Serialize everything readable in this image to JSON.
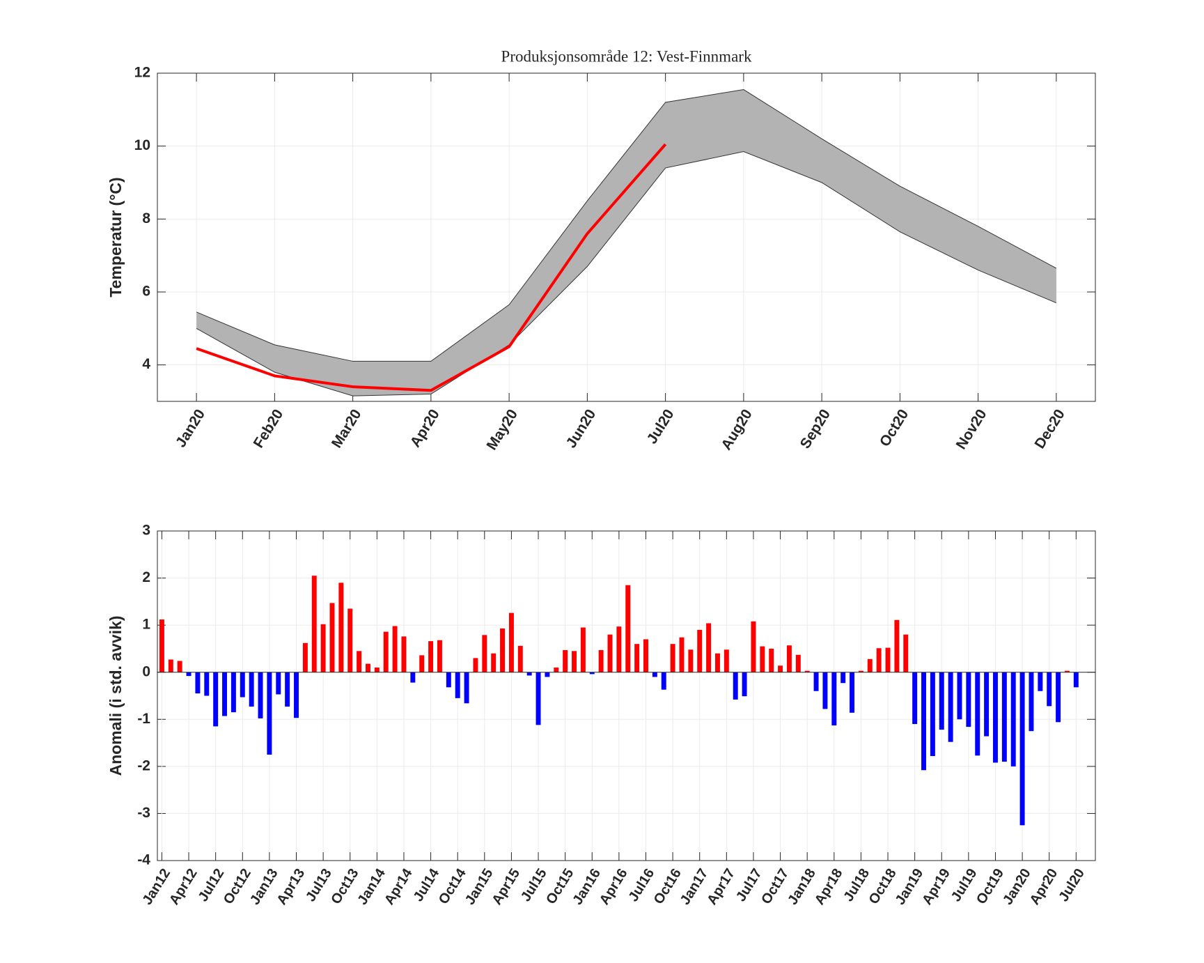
{
  "chart_data": [
    {
      "type": "line",
      "title": "Produksjonsområde 12: Vest-Finnmark",
      "ylabel": "Temperatur (°C)",
      "categories": [
        "Jan20",
        "Feb20",
        "Mar20",
        "Apr20",
        "May20",
        "Jun20",
        "Jul20",
        "Aug20",
        "Sep20",
        "Oct20",
        "Nov20",
        "Dec20"
      ],
      "band": {
        "color": "#b3b3b3",
        "upper": [
          5.45,
          4.55,
          4.1,
          4.1,
          5.65,
          8.5,
          11.2,
          11.55,
          10.2,
          8.9,
          7.8,
          6.65
        ],
        "lower": [
          5.0,
          3.8,
          3.15,
          3.2,
          4.55,
          6.7,
          9.4,
          9.85,
          9.0,
          7.65,
          6.6,
          5.7
        ]
      },
      "series": [
        {
          "color": "#ff0000",
          "values": [
            4.45,
            3.7,
            3.4,
            3.3,
            4.5,
            7.6,
            10.05,
            null,
            null,
            null,
            null,
            null
          ]
        }
      ],
      "ylim": [
        3,
        12
      ],
      "yticks": [
        4,
        6,
        8,
        10,
        12
      ],
      "grid": true
    },
    {
      "type": "bar",
      "ylabel": "Anomali (i std. avvik)",
      "categories": [
        "Jan12",
        null,
        null,
        "Apr12",
        null,
        null,
        "Jul12",
        null,
        null,
        "Oct12",
        null,
        null,
        "Jan13",
        null,
        null,
        "Apr13",
        null,
        null,
        "Jul13",
        null,
        null,
        "Oct13",
        null,
        null,
        "Jan14",
        null,
        null,
        "Apr14",
        null,
        null,
        "Jul14",
        null,
        null,
        "Oct14",
        null,
        null,
        "Jan15",
        null,
        null,
        "Apr15",
        null,
        null,
        "Jul15",
        null,
        null,
        "Oct15",
        null,
        null,
        "Jan16",
        null,
        null,
        "Apr16",
        null,
        null,
        "Jul16",
        null,
        null,
        "Oct16",
        null,
        null,
        "Jan17",
        null,
        null,
        "Apr17",
        null,
        null,
        "Jul17",
        null,
        null,
        "Oct17",
        null,
        null,
        "Jan18",
        null,
        null,
        "Apr18",
        null,
        null,
        "Jul18",
        null,
        null,
        "Oct18",
        null,
        null,
        "Jan19",
        null,
        null,
        "Apr19",
        null,
        null,
        "Jul19",
        null,
        null,
        "Oct19",
        null,
        null,
        "Jan20",
        null,
        null,
        "Apr20",
        null,
        null,
        "Jul20"
      ],
      "values": [
        1.12,
        0.27,
        0.24,
        -0.08,
        -0.45,
        -0.5,
        -1.15,
        -0.93,
        -0.85,
        -0.53,
        -0.73,
        -0.98,
        -1.75,
        -0.47,
        -0.73,
        -0.97,
        0.62,
        2.05,
        1.02,
        1.47,
        1.9,
        1.35,
        0.45,
        0.18,
        0.1,
        0.86,
        0.98,
        0.76,
        -0.22,
        0.36,
        0.66,
        0.68,
        -0.32,
        -0.55,
        -0.66,
        0.3,
        0.79,
        0.4,
        0.93,
        1.26,
        0.56,
        -0.07,
        -1.12,
        -0.1,
        0.1,
        0.47,
        0.45,
        0.95,
        -0.04,
        0.47,
        0.8,
        0.97,
        1.85,
        0.6,
        0.7,
        -0.1,
        -0.37,
        0.6,
        0.74,
        0.48,
        0.9,
        1.04,
        0.4,
        0.48,
        -0.58,
        -0.51,
        1.08,
        0.55,
        0.5,
        0.14,
        0.57,
        0.37,
        0.03,
        -0.4,
        -0.78,
        -1.13,
        -0.23,
        -0.86,
        0.03,
        0.28,
        0.51,
        0.52,
        1.11,
        0.8,
        -1.1,
        -2.08,
        -1.78,
        -1.22,
        -1.48,
        -1.0,
        -1.16,
        -1.77,
        -1.36,
        -1.92,
        -1.9,
        -2.0,
        -3.25,
        -1.25,
        -0.4,
        -0.72,
        -1.06,
        0.03,
        -0.32
      ],
      "colors": {
        "positive": "#ff0000",
        "negative": "#0000ff"
      },
      "ylim": [
        -4,
        3
      ],
      "yticks": [
        -4,
        -3,
        -2,
        -1,
        0,
        1,
        2,
        3
      ],
      "grid": true
    }
  ]
}
